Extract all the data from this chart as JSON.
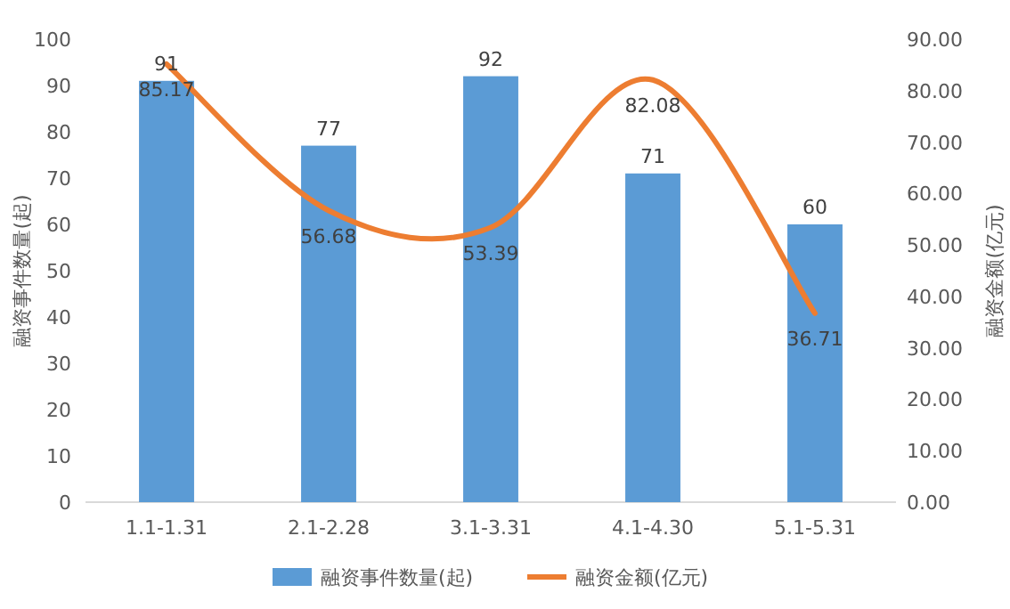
{
  "chart_data": {
    "type": "bar",
    "categories": [
      "1.1-1.31",
      "2.1-2.28",
      "3.1-3.31",
      "4.1-4.30",
      "5.1-5.31"
    ],
    "series": [
      {
        "name": "融资事件数量(起)",
        "color": "#5b9bd5",
        "values": [
          91,
          77,
          92,
          71,
          60
        ]
      },
      {
        "name": "融资金额(亿元)",
        "type": "line",
        "axis": "y2",
        "color": "#ed7d31",
        "values": [
          85.17,
          56.68,
          53.39,
          82.08,
          36.71
        ]
      }
    ],
    "ylabel": "融资事件数量(起)",
    "y2label": "融资金额(亿元)",
    "ylim": [
      0,
      100
    ],
    "yticks": [
      0,
      10,
      20,
      30,
      40,
      50,
      60,
      70,
      80,
      90,
      100
    ],
    "y2lim": [
      0,
      90
    ],
    "y2ticks": [
      {
        "value": 0,
        "label": "0.00"
      },
      {
        "value": 10,
        "label": "10.00"
      },
      {
        "value": 20,
        "label": "20.00"
      },
      {
        "value": 30,
        "label": "30.00"
      },
      {
        "value": 40,
        "label": "40.00"
      },
      {
        "value": 50,
        "label": "50.00"
      },
      {
        "value": 60,
        "label": "60.00"
      },
      {
        "value": 70,
        "label": "70.00"
      },
      {
        "value": 80,
        "label": "80.00"
      },
      {
        "value": 90,
        "label": "90.00"
      }
    ],
    "legend": "bottom",
    "data_labels": true
  }
}
